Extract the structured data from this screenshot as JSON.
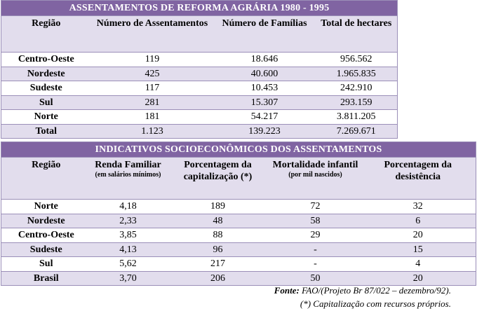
{
  "table1": {
    "title": "ASSENTAMENTOS DE REFORMA AGRÁRIA 1980 - 1995",
    "headers": [
      "Região",
      "Número de Assentamentos",
      "Número de Famílias",
      "Total de hectares"
    ],
    "rows": [
      [
        "Centro-Oeste",
        "119",
        "18.646",
        "956.562"
      ],
      [
        "Nordeste",
        "425",
        "40.600",
        "1.965.835"
      ],
      [
        "Sudeste",
        "117",
        "10.453",
        "242.910"
      ],
      [
        "Sul",
        "281",
        "15.307",
        "293.159"
      ],
      [
        "Norte",
        "181",
        "54.217",
        "3.811.205"
      ],
      [
        "Total",
        "1.123",
        "139.223",
        "7.269.671"
      ]
    ]
  },
  "table2": {
    "title": "INDICATIVOS SOCIOECONÔMICOS DOS ASSENTAMENTOS",
    "headers": [
      "Região",
      "Renda Familiar",
      "Porcentagem da capitalização (*)",
      "Mortalidade infantil",
      "Porcentagem da desistência"
    ],
    "subheaders": {
      "renda": "(em salários mínimos)",
      "mortalidade": "(por mil nascidos)"
    },
    "rows": [
      [
        "Norte",
        "4,18",
        "189",
        "72",
        "32"
      ],
      [
        "Nordeste",
        "2,33",
        "48",
        "58",
        "6"
      ],
      [
        "Centro-Oeste",
        "3,85",
        "88",
        "29",
        "20"
      ],
      [
        "Sudeste",
        "4,13",
        "96",
        "-",
        "15"
      ],
      [
        "Sul",
        "5,62",
        "217",
        "-",
        "4"
      ],
      [
        "Brasil",
        "3,70",
        "206",
        "50",
        "20"
      ]
    ]
  },
  "footer": {
    "source_label": "Fonte:",
    "source_text": " FAO/(Projeto Br 87/022 – dezembro/92).",
    "note": "(*) Capitalização com recursos próprios."
  },
  "colors": {
    "title_bg": "#8064a2",
    "band": "#e2dded"
  }
}
